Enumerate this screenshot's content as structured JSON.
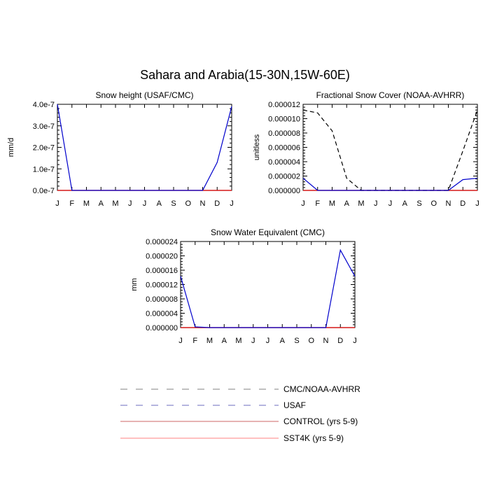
{
  "title": "Sahara and Arabia(15-30N,15W-60E)",
  "colors": {
    "cmc_noaa_avhrr": "#000000",
    "usaf": "#0000cc",
    "control": "#cc0000",
    "sst4k": "#ff6666"
  },
  "legend": [
    {
      "label": "CMC/NOAA-AVHRR",
      "color": "#808080",
      "dash": "dashed"
    },
    {
      "label": "USAF",
      "color": "#6b6bbf",
      "dash": "dashed"
    },
    {
      "label": "CONTROL (yrs 5-9)",
      "color": "#cc6666",
      "dash": "solid"
    },
    {
      "label": "SST4K (yrs 5-9)",
      "color": "#ff8080",
      "dash": "solid"
    }
  ],
  "chart_data": [
    {
      "type": "line",
      "title": "Snow height (USAF/CMC)",
      "ylabel": "mm/d",
      "xlabel": "",
      "categories": [
        "J",
        "F",
        "M",
        "A",
        "M",
        "J",
        "J",
        "A",
        "S",
        "O",
        "N",
        "D",
        "J"
      ],
      "ylim": [
        0,
        4e-07
      ],
      "yticks": [
        0,
        1e-07,
        2e-07,
        3e-07,
        4e-07
      ],
      "yticklabels": [
        "0.0e-7",
        "1.0e-7",
        "2.0e-7",
        "3.0e-7",
        "4.0e-7"
      ],
      "series": [
        {
          "key": "usaf",
          "values": [
            4e-07,
            0,
            0,
            0,
            0,
            0,
            0,
            0,
            0,
            0,
            0,
            1.3e-07,
            3.9e-07
          ]
        },
        {
          "key": "control",
          "values": [
            0,
            0,
            0,
            0,
            0,
            0,
            0,
            0,
            0,
            0,
            0,
            0,
            0
          ]
        },
        {
          "key": "sst4k",
          "values": [
            0,
            0,
            0,
            0,
            0,
            0,
            0,
            0,
            0,
            0,
            0,
            0,
            0
          ]
        }
      ]
    },
    {
      "type": "line",
      "title": "Fractional Snow Cover (NOAA-AVHRR)",
      "ylabel": "unitless",
      "xlabel": "",
      "categories": [
        "J",
        "F",
        "M",
        "A",
        "M",
        "J",
        "J",
        "A",
        "S",
        "O",
        "N",
        "D",
        "J"
      ],
      "ylim": [
        0,
        1.2e-05
      ],
      "yticks": [
        0,
        2e-06,
        4e-06,
        6e-06,
        8e-06,
        1e-05,
        1.2e-05
      ],
      "yticklabels": [
        "0.000000",
        "0.000002",
        "0.000004",
        "0.000006",
        "0.000008",
        "0.000010",
        "0.000012"
      ],
      "series": [
        {
          "key": "cmc_noaa_avhrr",
          "values": [
            1.12e-05,
            1.08e-05,
            8.3e-06,
            1.7e-06,
            0,
            0,
            0,
            0,
            0,
            0,
            0,
            5.5e-06,
            1.12e-05
          ]
        },
        {
          "key": "usaf",
          "values": [
            1.7e-06,
            0,
            0,
            0,
            0,
            0,
            0,
            0,
            0,
            0,
            0,
            1.5e-06,
            1.7e-06
          ]
        },
        {
          "key": "control",
          "values": [
            0,
            0,
            0,
            0,
            0,
            0,
            0,
            0,
            0,
            0,
            0,
            0,
            0
          ]
        },
        {
          "key": "sst4k",
          "values": [
            0,
            0,
            0,
            0,
            0,
            0,
            0,
            0,
            0,
            0,
            0,
            0,
            0
          ]
        }
      ]
    },
    {
      "type": "line",
      "title": "Snow Water Equivalent (CMC)",
      "ylabel": "mm",
      "xlabel": "",
      "categories": [
        "J",
        "F",
        "M",
        "A",
        "M",
        "J",
        "J",
        "A",
        "S",
        "O",
        "N",
        "D",
        "J"
      ],
      "ylim": [
        0,
        2.4e-05
      ],
      "yticks": [
        0,
        4e-06,
        8e-06,
        1.2e-05,
        1.6e-05,
        2e-05,
        2.4e-05
      ],
      "yticklabels": [
        "0.000000",
        "0.000004",
        "0.000008",
        "0.000012",
        "0.000016",
        "0.000020",
        "0.000024"
      ],
      "series": [
        {
          "key": "usaf",
          "values": [
            1.43e-05,
            2e-07,
            0,
            0,
            0,
            0,
            0,
            0,
            0,
            0,
            0,
            2.16e-05,
            1.43e-05
          ]
        },
        {
          "key": "control",
          "values": [
            0,
            0,
            0,
            0,
            0,
            0,
            0,
            0,
            0,
            0,
            0,
            0,
            0
          ]
        },
        {
          "key": "sst4k",
          "values": [
            0,
            0,
            0,
            0,
            0,
            0,
            0,
            0,
            0,
            0,
            0,
            0,
            0
          ]
        }
      ]
    }
  ]
}
